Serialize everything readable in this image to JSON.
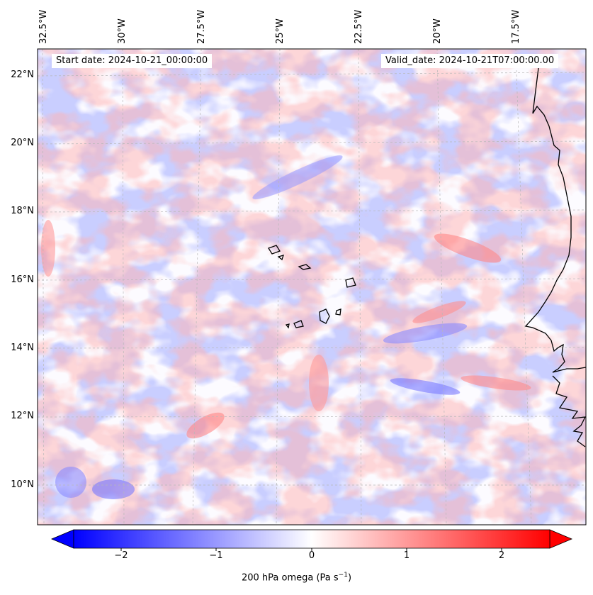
{
  "map": {
    "start_date": "Start date: 2024-10-21_00:00:00",
    "valid_date": "Valid_date: 2024-10-21T07:00:00.00",
    "longitude_labels": [
      "32.5°W",
      "30°W",
      "27.5°W",
      "25°W",
      "22.5°W",
      "20°W",
      "17.5°W"
    ],
    "latitude_labels": [
      "22°N",
      "20°N",
      "18°N",
      "16°N",
      "14°N",
      "12°N",
      "10°N"
    ],
    "field_colors": {
      "negative": "#0000ff",
      "zero": "#ffffff",
      "positive": "#ff0000"
    },
    "coastline_color": "#000000"
  },
  "colorbar": {
    "ticks": [
      "−2",
      "−1",
      "0",
      "1",
      "2"
    ],
    "label_main": "200 hPa omega (Pa s",
    "label_exp": "−1",
    "label_close": ")",
    "range": [
      -2.75,
      2.75
    ]
  }
}
